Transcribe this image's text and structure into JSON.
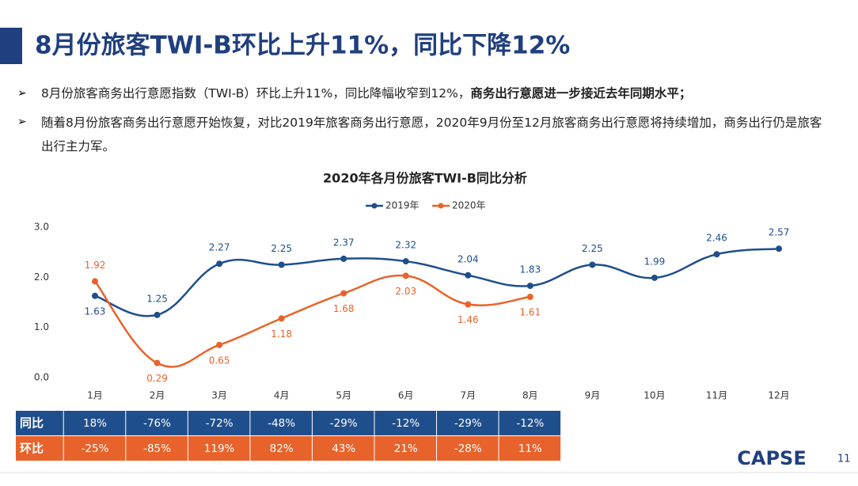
{
  "header": {
    "title": "8月份旅客TWI-B环比上升11%，同比下降12%"
  },
  "bullets": [
    {
      "text": "8月份旅客商务出行意愿指数（TWI-B）环比上升11%，同比降幅收窄到12%，",
      "bold": "商务出行意愿进一步接近去年同期水平；"
    },
    {
      "text": "随着8月份旅客商务出行意愿开始恢复，对比2019年旅客商务出行意愿，2020年9月份至12月旅客商务出行意愿将持续增加，商务出行仍是旅客出行主力军。"
    }
  ],
  "chart_data": {
    "type": "line",
    "title": "2020年各月份旅客TWI-B同比分析",
    "categories": [
      "1月",
      "2月",
      "3月",
      "4月",
      "5月",
      "6月",
      "7月",
      "8月",
      "9月",
      "10月",
      "11月",
      "12月"
    ],
    "series": [
      {
        "name": "2019年",
        "color": "#1f4e8c",
        "values": [
          1.63,
          1.25,
          2.27,
          2.25,
          2.37,
          2.32,
          2.04,
          1.83,
          2.25,
          1.99,
          2.46,
          2.57
        ]
      },
      {
        "name": "2020年",
        "color": "#e8632b",
        "values": [
          1.92,
          0.29,
          0.65,
          1.18,
          1.68,
          2.03,
          1.46,
          1.61,
          null,
          null,
          null,
          null
        ]
      }
    ],
    "ylim": [
      0,
      3
    ],
    "yticks": [
      {
        "value": 3,
        "label": "3.0"
      },
      {
        "value": 2,
        "label": "2.0"
      },
      {
        "value": 1,
        "label": "1.0"
      },
      {
        "value": 0,
        "label": "0.0"
      }
    ],
    "legend": "top"
  },
  "table": {
    "rows": [
      [
        "同比",
        "18%",
        "-76%",
        "-72%",
        "-48%",
        "-29%",
        "-12%",
        "-29%",
        "-12%"
      ],
      [
        "环比",
        "-25%",
        "-85%",
        "119%",
        "82%",
        "43%",
        "21%",
        "-28%",
        "11%"
      ]
    ]
  },
  "footer": {
    "logo": "CAPSE",
    "page": "11"
  }
}
